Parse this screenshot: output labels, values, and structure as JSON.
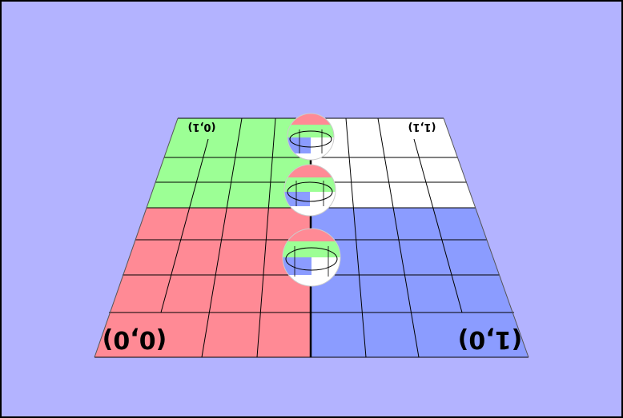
{
  "scene": {
    "background_color": "#b3b3ff",
    "quadrant_colors": {
      "near_left": "#ff8a95",
      "near_right": "#8b9cff",
      "far_left": "#9cff95",
      "far_right": "#ffffff"
    },
    "corner_labels": {
      "near_left": "(0,0)",
      "near_right": "(1,0)",
      "far_left": "(0,1)",
      "far_right": "(1,1)"
    },
    "sphere_count": 3
  }
}
